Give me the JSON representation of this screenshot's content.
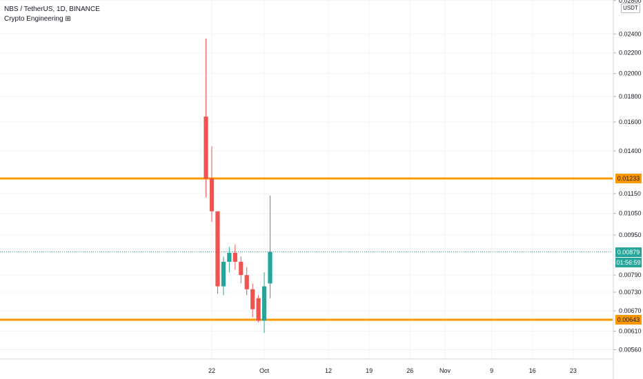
{
  "header": {
    "title": "NBS / TetherUS, 1D, BINANCE",
    "subtitle": "Crypto Engineering ⊞"
  },
  "currency_badge": "USDT",
  "labels": {
    "level_high": "0.01233",
    "last_price": "0.00879",
    "countdown": "01:56:59",
    "level_low": "0.00643"
  },
  "colors": {
    "up": "#26a69a",
    "down": "#ef5350",
    "level": "#ff9800",
    "last": "#26a69a"
  },
  "chart_data": {
    "type": "candlestick",
    "y_scale": "log",
    "ylim": [
      0.0052,
      0.0283
    ],
    "y_ticks": [
      "0.02800",
      "0.02400",
      "0.02200",
      "0.02000",
      "0.01800",
      "0.01600",
      "0.01400",
      "0.01150",
      "0.01050",
      "0.00950",
      "0.00790",
      "0.00730",
      "0.00670",
      "0.00610",
      "0.00560"
    ],
    "x_ticks": [
      {
        "label": "22",
        "x": 0
      },
      {
        "label": "Oct",
        "x": 9
      },
      {
        "label": "12",
        "x": 20
      },
      {
        "label": "19",
        "x": 27
      },
      {
        "label": "26",
        "x": 34
      },
      {
        "label": "Nov",
        "x": 40
      },
      {
        "label": "9",
        "x": 48
      },
      {
        "label": "16",
        "x": 55
      },
      {
        "label": "23",
        "x": 62
      }
    ],
    "candles": [
      {
        "x": -1,
        "open": 0.0164,
        "high": 0.0235,
        "low": 0.0113,
        "close": 0.01233
      },
      {
        "x": 0,
        "open": 0.01233,
        "high": 0.0143,
        "low": 0.0101,
        "close": 0.0106
      },
      {
        "x": 1,
        "open": 0.0106,
        "high": 0.0106,
        "low": 0.00725,
        "close": 0.0075
      },
      {
        "x": 2,
        "open": 0.0075,
        "high": 0.0086,
        "low": 0.0072,
        "close": 0.0084
      },
      {
        "x": 3,
        "open": 0.0084,
        "high": 0.009,
        "low": 0.008,
        "close": 0.00875
      },
      {
        "x": 4,
        "open": 0.00875,
        "high": 0.0091,
        "low": 0.0081,
        "close": 0.0084
      },
      {
        "x": 5,
        "open": 0.0084,
        "high": 0.0086,
        "low": 0.0076,
        "close": 0.0079
      },
      {
        "x": 6,
        "open": 0.0079,
        "high": 0.0082,
        "low": 0.0072,
        "close": 0.0074
      },
      {
        "x": 7,
        "open": 0.0074,
        "high": 0.0076,
        "low": 0.0065,
        "close": 0.00675
      },
      {
        "x": 8,
        "open": 0.0071,
        "high": 0.0072,
        "low": 0.00635,
        "close": 0.0064
      },
      {
        "x": 9,
        "open": 0.0064,
        "high": 0.008,
        "low": 0.00605,
        "close": 0.0075
      },
      {
        "x": 10,
        "open": 0.0076,
        "high": 0.0114,
        "low": 0.0071,
        "close": 0.00879
      }
    ],
    "horizontal_levels": [
      0.01233,
      0.00643
    ],
    "last_price": 0.00879
  }
}
